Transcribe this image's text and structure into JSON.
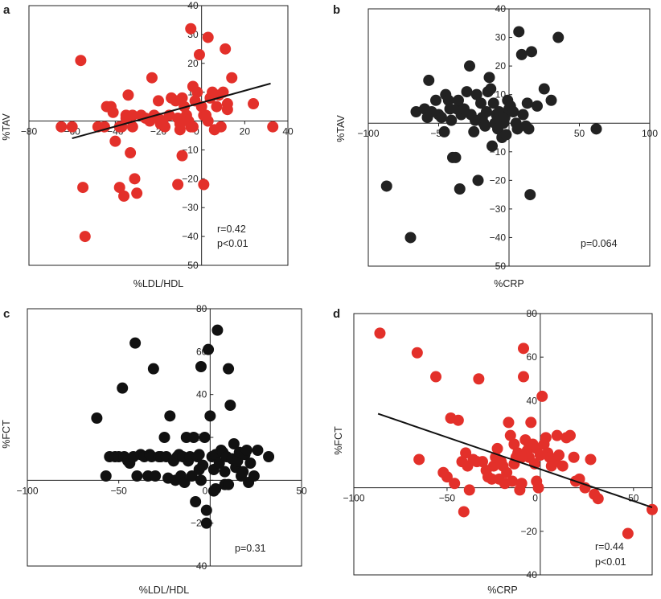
{
  "chart_data": [
    {
      "panel_label": "a",
      "type": "scatter",
      "xlabel": "%LDL/HDL",
      "ylabel": "%TAV",
      "xlim": [
        -80,
        40
      ],
      "ylim": [
        -50,
        40
      ],
      "xticks": [
        -80,
        -60,
        -40,
        -20,
        0,
        20,
        40
      ],
      "yticks": [
        -50,
        -40,
        -30,
        -20,
        -10,
        0,
        10,
        20,
        30,
        40
      ],
      "point_color": "#e3302a",
      "points": [
        [
          -56,
          21
        ],
        [
          -65,
          -2
        ],
        [
          -60,
          -2
        ],
        [
          -48,
          -2
        ],
        [
          -44,
          5
        ],
        [
          -42,
          5
        ],
        [
          -41,
          3
        ],
        [
          -40,
          -7
        ],
        [
          -38,
          -2
        ],
        [
          -37,
          -2
        ],
        [
          -35,
          2
        ],
        [
          -35,
          1
        ],
        [
          -34,
          9
        ],
        [
          -33,
          -11
        ],
        [
          -32,
          2
        ],
        [
          -31,
          -20
        ],
        [
          -30,
          -25
        ],
        [
          -28,
          2
        ],
        [
          -26,
          1
        ],
        [
          -24,
          0
        ],
        [
          -23,
          15
        ],
        [
          -22,
          2
        ],
        [
          -20,
          7
        ],
        [
          -20,
          1
        ],
        [
          -19,
          -1
        ],
        [
          -18,
          0
        ],
        [
          -17,
          -2
        ],
        [
          -15,
          2
        ],
        [
          -14,
          8
        ],
        [
          -12,
          7
        ],
        [
          -11,
          1
        ],
        [
          -10,
          -1
        ],
        [
          -10,
          -3
        ],
        [
          -9,
          -12
        ],
        [
          -9,
          8
        ],
        [
          -8,
          5
        ],
        [
          -7,
          2
        ],
        [
          -6,
          0
        ],
        [
          -5,
          -2
        ],
        [
          -5,
          32
        ],
        [
          -4,
          12
        ],
        [
          -3,
          7
        ],
        [
          -2,
          10
        ],
        [
          -1,
          23
        ],
        [
          0,
          5
        ],
        [
          1,
          2
        ],
        [
          2,
          2
        ],
        [
          3,
          0
        ],
        [
          4,
          8
        ],
        [
          5,
          10
        ],
        [
          6,
          -3
        ],
        [
          7,
          5
        ],
        [
          8,
          9
        ],
        [
          9,
          -2
        ],
        [
          10,
          10
        ],
        [
          11,
          25
        ],
        [
          12,
          6
        ],
        [
          14,
          15
        ],
        [
          12,
          4
        ],
        [
          3,
          29
        ],
        [
          -4,
          -2
        ],
        [
          1,
          -22
        ],
        [
          -11,
          -22
        ],
        [
          -55,
          -23
        ],
        [
          -54,
          -40
        ],
        [
          24,
          6
        ],
        [
          33,
          -2
        ],
        [
          -45,
          -2
        ],
        [
          -38,
          -23
        ],
        [
          -36,
          -26
        ],
        [
          -32,
          -2
        ]
      ],
      "fit_line": {
        "x": [
          -60,
          32
        ],
        "y": [
          -6,
          13
        ]
      },
      "annotations": [
        "r=0.42",
        "p<0.01"
      ]
    },
    {
      "panel_label": "b",
      "type": "scatter",
      "xlabel": "%CRP",
      "ylabel": "%TAV",
      "xlim": [
        -100,
        100
      ],
      "ylim": [
        -50,
        40
      ],
      "xticks": [
        -100,
        -50,
        0,
        50,
        100
      ],
      "yticks": [
        -50,
        -40,
        -30,
        -20,
        -10,
        0,
        10,
        20,
        30,
        40
      ],
      "point_color": "#222222",
      "points": [
        [
          -87,
          -22
        ],
        [
          -70,
          -40
        ],
        [
          -66,
          4
        ],
        [
          -57,
          15
        ],
        [
          -55,
          4
        ],
        [
          -52,
          8
        ],
        [
          -50,
          3
        ],
        [
          -48,
          2
        ],
        [
          -46,
          -3
        ],
        [
          -45,
          10
        ],
        [
          -43,
          8
        ],
        [
          -42,
          5
        ],
        [
          -41,
          1
        ],
        [
          -40,
          -12
        ],
        [
          -38,
          -12
        ],
        [
          -37,
          5
        ],
        [
          -36,
          8
        ],
        [
          -35,
          -23
        ],
        [
          -34,
          3
        ],
        [
          -32,
          5
        ],
        [
          -30,
          11
        ],
        [
          -28,
          20
        ],
        [
          -27,
          3
        ],
        [
          -25,
          -3
        ],
        [
          -24,
          1
        ],
        [
          -23,
          10
        ],
        [
          -22,
          -20
        ],
        [
          -20,
          7
        ],
        [
          -19,
          2
        ],
        [
          -18,
          0
        ],
        [
          -17,
          -1
        ],
        [
          -16,
          4
        ],
        [
          -15,
          11
        ],
        [
          -14,
          16
        ],
        [
          -13,
          12
        ],
        [
          -12,
          -8
        ],
        [
          -11,
          7
        ],
        [
          -10,
          0
        ],
        [
          -9,
          3
        ],
        [
          -8,
          -2
        ],
        [
          -7,
          4
        ],
        [
          -6,
          1
        ],
        [
          -5,
          -5
        ],
        [
          -4,
          0
        ],
        [
          -3,
          2
        ],
        [
          -2,
          -4
        ],
        [
          -1,
          8
        ],
        [
          0,
          5
        ],
        [
          1,
          6
        ],
        [
          3,
          4
        ],
        [
          5,
          0
        ],
        [
          6,
          -2
        ],
        [
          7,
          32
        ],
        [
          9,
          24
        ],
        [
          10,
          3
        ],
        [
          12,
          -1
        ],
        [
          13,
          7
        ],
        [
          14,
          -2
        ],
        [
          15,
          -25
        ],
        [
          16,
          25
        ],
        [
          20,
          6
        ],
        [
          25,
          12
        ],
        [
          30,
          8
        ],
        [
          35,
          30
        ],
        [
          62,
          -2
        ],
        [
          -60,
          5
        ],
        [
          -58,
          2
        ]
      ],
      "annotations": [
        "p=0.064"
      ]
    },
    {
      "panel_label": "c",
      "type": "scatter",
      "xlabel": "%LDL/HDL",
      "ylabel": "%FCT",
      "xlim": [
        -100,
        50
      ],
      "ylim": [
        -40,
        80
      ],
      "xticks": [
        -100,
        -50,
        0,
        50
      ],
      "yticks": [
        -40,
        -20,
        0,
        20,
        40,
        60,
        80
      ],
      "point_color": "#111111",
      "points": [
        [
          -62,
          29
        ],
        [
          -57,
          2
        ],
        [
          -55,
          11
        ],
        [
          -52,
          11
        ],
        [
          -50,
          11
        ],
        [
          -48,
          43
        ],
        [
          -47,
          11
        ],
        [
          -45,
          9
        ],
        [
          -44,
          8
        ],
        [
          -42,
          11
        ],
        [
          -41,
          64
        ],
        [
          -40,
          2
        ],
        [
          -38,
          12
        ],
        [
          -36,
          11
        ],
        [
          -34,
          2
        ],
        [
          -33,
          12
        ],
        [
          -32,
          11
        ],
        [
          -31,
          52
        ],
        [
          -30,
          2
        ],
        [
          -28,
          11
        ],
        [
          -27,
          11
        ],
        [
          -25,
          20
        ],
        [
          -24,
          11
        ],
        [
          -23,
          1
        ],
        [
          -22,
          30
        ],
        [
          -20,
          9
        ],
        [
          -19,
          0
        ],
        [
          -18,
          11
        ],
        [
          -17,
          12
        ],
        [
          -16,
          2
        ],
        [
          -15,
          11
        ],
        [
          -14,
          -1
        ],
        [
          -13,
          20
        ],
        [
          -12,
          9
        ],
        [
          -11,
          11
        ],
        [
          -10,
          2
        ],
        [
          -9,
          20
        ],
        [
          -8,
          -10
        ],
        [
          -7,
          11
        ],
        [
          -6,
          12
        ],
        [
          -5,
          53
        ],
        [
          -4,
          7
        ],
        [
          -3,
          20
        ],
        [
          -2,
          -14
        ],
        [
          -1,
          61
        ],
        [
          0,
          30
        ],
        [
          1,
          11
        ],
        [
          2,
          5
        ],
        [
          3,
          12
        ],
        [
          4,
          70
        ],
        [
          5,
          8
        ],
        [
          6,
          14
        ],
        [
          7,
          13
        ],
        [
          8,
          -2
        ],
        [
          9,
          11
        ],
        [
          10,
          52
        ],
        [
          11,
          35
        ],
        [
          12,
          10
        ],
        [
          13,
          17
        ],
        [
          14,
          6
        ],
        [
          15,
          9
        ],
        [
          16,
          13
        ],
        [
          17,
          2
        ],
        [
          18,
          4
        ],
        [
          19,
          12
        ],
        [
          20,
          14
        ],
        [
          21,
          -1
        ],
        [
          22,
          8
        ],
        [
          24,
          2
        ],
        [
          26,
          14
        ],
        [
          32,
          11
        ],
        [
          -6,
          5
        ],
        [
          -5,
          0
        ],
        [
          2,
          -5
        ],
        [
          -2,
          -20
        ],
        [
          3,
          -4
        ],
        [
          10,
          -2
        ],
        [
          8,
          4
        ]
      ],
      "annotations": [
        "p=0.31"
      ]
    },
    {
      "panel_label": "d",
      "type": "scatter",
      "xlabel": "%CRP",
      "ylabel": "%FCT",
      "xlim": [
        -100,
        60
      ],
      "ylim": [
        -40,
        80
      ],
      "xticks": [
        -100,
        -50,
        0,
        50
      ],
      "yticks": [
        -40,
        -20,
        0,
        20,
        40,
        60,
        80
      ],
      "point_color": "#e3302a",
      "points": [
        [
          -86,
          71
        ],
        [
          -66,
          62
        ],
        [
          -65,
          13
        ],
        [
          -56,
          51
        ],
        [
          -52,
          7
        ],
        [
          -50,
          5
        ],
        [
          -48,
          32
        ],
        [
          -46,
          2
        ],
        [
          -44,
          31
        ],
        [
          -42,
          12
        ],
        [
          -41,
          -11
        ],
        [
          -40,
          16
        ],
        [
          -39,
          10
        ],
        [
          -38,
          -1
        ],
        [
          -36,
          13
        ],
        [
          -34,
          12
        ],
        [
          -33,
          50
        ],
        [
          -31,
          12
        ],
        [
          -29,
          8
        ],
        [
          -28,
          5
        ],
        [
          -26,
          4
        ],
        [
          -25,
          10
        ],
        [
          -24,
          14
        ],
        [
          -23,
          18
        ],
        [
          -22,
          4
        ],
        [
          -21,
          12
        ],
        [
          -20,
          10
        ],
        [
          -19,
          2
        ],
        [
          -18,
          7
        ],
        [
          -17,
          30
        ],
        [
          -16,
          24
        ],
        [
          -15,
          3
        ],
        [
          -14,
          20
        ],
        [
          -13,
          14
        ],
        [
          -12,
          16
        ],
        [
          -11,
          -1
        ],
        [
          -10,
          2
        ],
        [
          -9,
          64
        ],
        [
          -9,
          51
        ],
        [
          -8,
          22
        ],
        [
          -7,
          17
        ],
        [
          -6,
          14
        ],
        [
          -5,
          30
        ],
        [
          -4,
          20
        ],
        [
          -3,
          11
        ],
        [
          -2,
          3
        ],
        [
          -1,
          0
        ],
        [
          0,
          15
        ],
        [
          1,
          42
        ],
        [
          2,
          20
        ],
        [
          3,
          23
        ],
        [
          4,
          16
        ],
        [
          5,
          14
        ],
        [
          6,
          10
        ],
        [
          7,
          13
        ],
        [
          8,
          12
        ],
        [
          9,
          24
        ],
        [
          10,
          15
        ],
        [
          12,
          10
        ],
        [
          14,
          23
        ],
        [
          16,
          24
        ],
        [
          18,
          14
        ],
        [
          19,
          3
        ],
        [
          21,
          4
        ],
        [
          24,
          0
        ],
        [
          27,
          13
        ],
        [
          29,
          -3
        ],
        [
          31,
          -5
        ],
        [
          47,
          -21
        ],
        [
          60,
          -10
        ],
        [
          -10,
          14
        ],
        [
          -6,
          20
        ],
        [
          -14,
          11
        ],
        [
          -2,
          18
        ]
      ],
      "fit_line": {
        "x": [
          -87,
          60
        ],
        "y": [
          34,
          -9
        ]
      },
      "annotations": [
        "r=0.44",
        "p<0.01"
      ]
    }
  ]
}
